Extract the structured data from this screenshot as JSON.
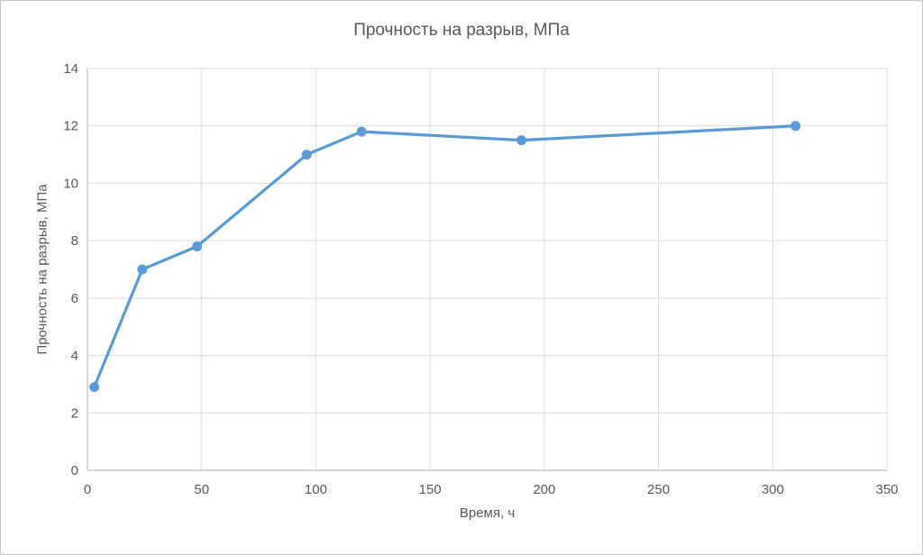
{
  "chart_data": {
    "type": "line",
    "title": "Прочность на разрыв, МПа",
    "xlabel": "Время, ч",
    "ylabel": "Прочность на разрыв, МПа",
    "x": [
      3,
      24,
      48,
      96,
      120,
      190,
      310
    ],
    "y": [
      2.9,
      7.0,
      7.8,
      11.0,
      11.8,
      11.5,
      12.0
    ],
    "xlim": [
      0,
      350
    ],
    "ylim": [
      0,
      14
    ],
    "x_ticks": [
      0,
      50,
      100,
      150,
      200,
      250,
      300,
      350
    ],
    "y_ticks": [
      0,
      2,
      4,
      6,
      8,
      10,
      12,
      14
    ],
    "grid": true,
    "legend": "none",
    "line_color": "#5B9BD5",
    "marker_color": "#5B9BD5",
    "text_color": "#595959",
    "gridline_color": "#D9D9D9",
    "axis_line_color": "#BFBFBF"
  }
}
